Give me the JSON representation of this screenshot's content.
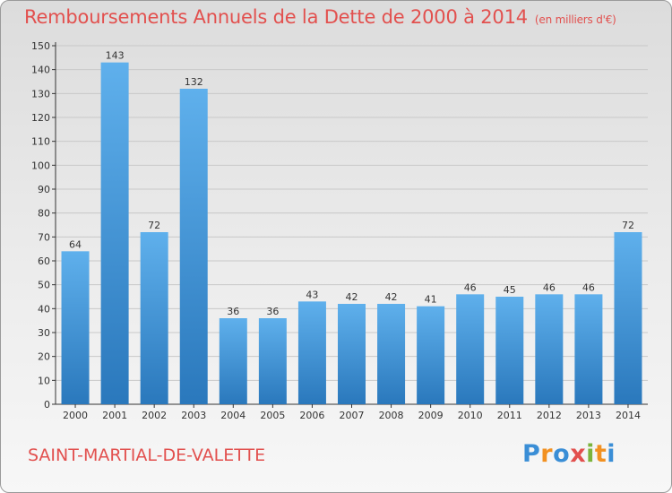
{
  "header": {
    "title": "Remboursements Annuels de la Dette de 2000 à 2014",
    "unit": "(en milliers d'€)"
  },
  "footer": {
    "commune": "SAINT-MARTIAL-DE-VALETTE",
    "logo": {
      "text": "Proxiti",
      "letters": [
        "P",
        "r",
        "o",
        "x",
        "i",
        "t",
        "i"
      ],
      "colors": [
        "#3a8ed6",
        "#f29121",
        "#3a8ed6",
        "#e2504e",
        "#7bb43c",
        "#f29121",
        "#3a8ed6"
      ]
    }
  },
  "colors": {
    "accent": "#e2504e",
    "bar_light": "#5fb0ec",
    "bar_dark": "#2a78bc",
    "axis": "#333333",
    "grid": "#c8c8c8"
  },
  "chart_data": {
    "type": "bar",
    "title": "Remboursements Annuels de la Dette de 2000 à 2014",
    "subtitle": "(en milliers d'€)",
    "xlabel": "",
    "ylabel": "",
    "categories": [
      "2000",
      "2001",
      "2002",
      "2003",
      "2004",
      "2005",
      "2006",
      "2007",
      "2008",
      "2009",
      "2010",
      "2011",
      "2012",
      "2013",
      "2014"
    ],
    "values": [
      64,
      143,
      72,
      132,
      36,
      36,
      43,
      42,
      42,
      41,
      46,
      45,
      46,
      46,
      72
    ],
    "ylim": [
      0,
      150
    ],
    "yticks": [
      0,
      10,
      20,
      30,
      40,
      50,
      60,
      70,
      80,
      90,
      100,
      110,
      120,
      130,
      140,
      150
    ],
    "grid": true,
    "legend": "none"
  }
}
